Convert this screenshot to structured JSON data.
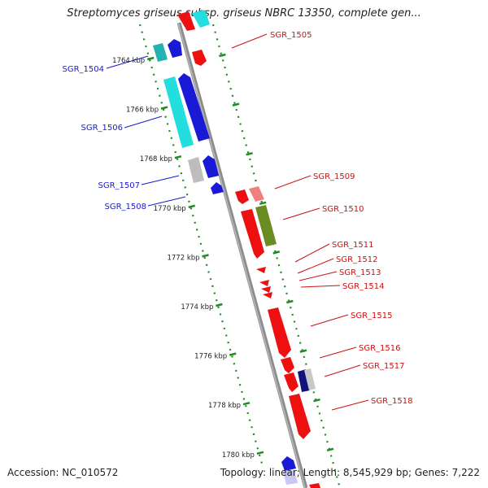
{
  "title": "Streptomyces griseus subsp. griseus NBRC 13350, complete gen...",
  "accession": "Accession: NC_010572",
  "summary": "Topology: linear; Length: 8,545,929 bp; Genes: 7,222",
  "ruler_unit": "kbp",
  "ticks": [
    1764,
    1766,
    1768,
    1770,
    1772,
    1774,
    1776,
    1778,
    1780
  ],
  "colors": {
    "minus_label": "#1a1acc",
    "plus_label": "#cc1010",
    "axis": "#8c8c8c",
    "ruler": "#1e8c1e"
  },
  "genes": [
    {
      "name": "SGR_1504",
      "strand": "-"
    },
    {
      "name": "SGR_1505",
      "strand": "+"
    },
    {
      "name": "SGR_1506",
      "strand": "-"
    },
    {
      "name": "SGR_1507",
      "strand": "-"
    },
    {
      "name": "SGR_1508",
      "strand": "-"
    },
    {
      "name": "SGR_1509",
      "strand": "+"
    },
    {
      "name": "SGR_1510",
      "strand": "+"
    },
    {
      "name": "SGR_1511",
      "strand": "+"
    },
    {
      "name": "SGR_1512",
      "strand": "+"
    },
    {
      "name": "SGR_1513",
      "strand": "+"
    },
    {
      "name": "SGR_1514",
      "strand": "+"
    },
    {
      "name": "SGR_1515",
      "strand": "+"
    },
    {
      "name": "SGR_1516",
      "strand": "+"
    },
    {
      "name": "SGR_1517",
      "strand": "+"
    },
    {
      "name": "SGR_1518",
      "strand": "+"
    }
  ]
}
